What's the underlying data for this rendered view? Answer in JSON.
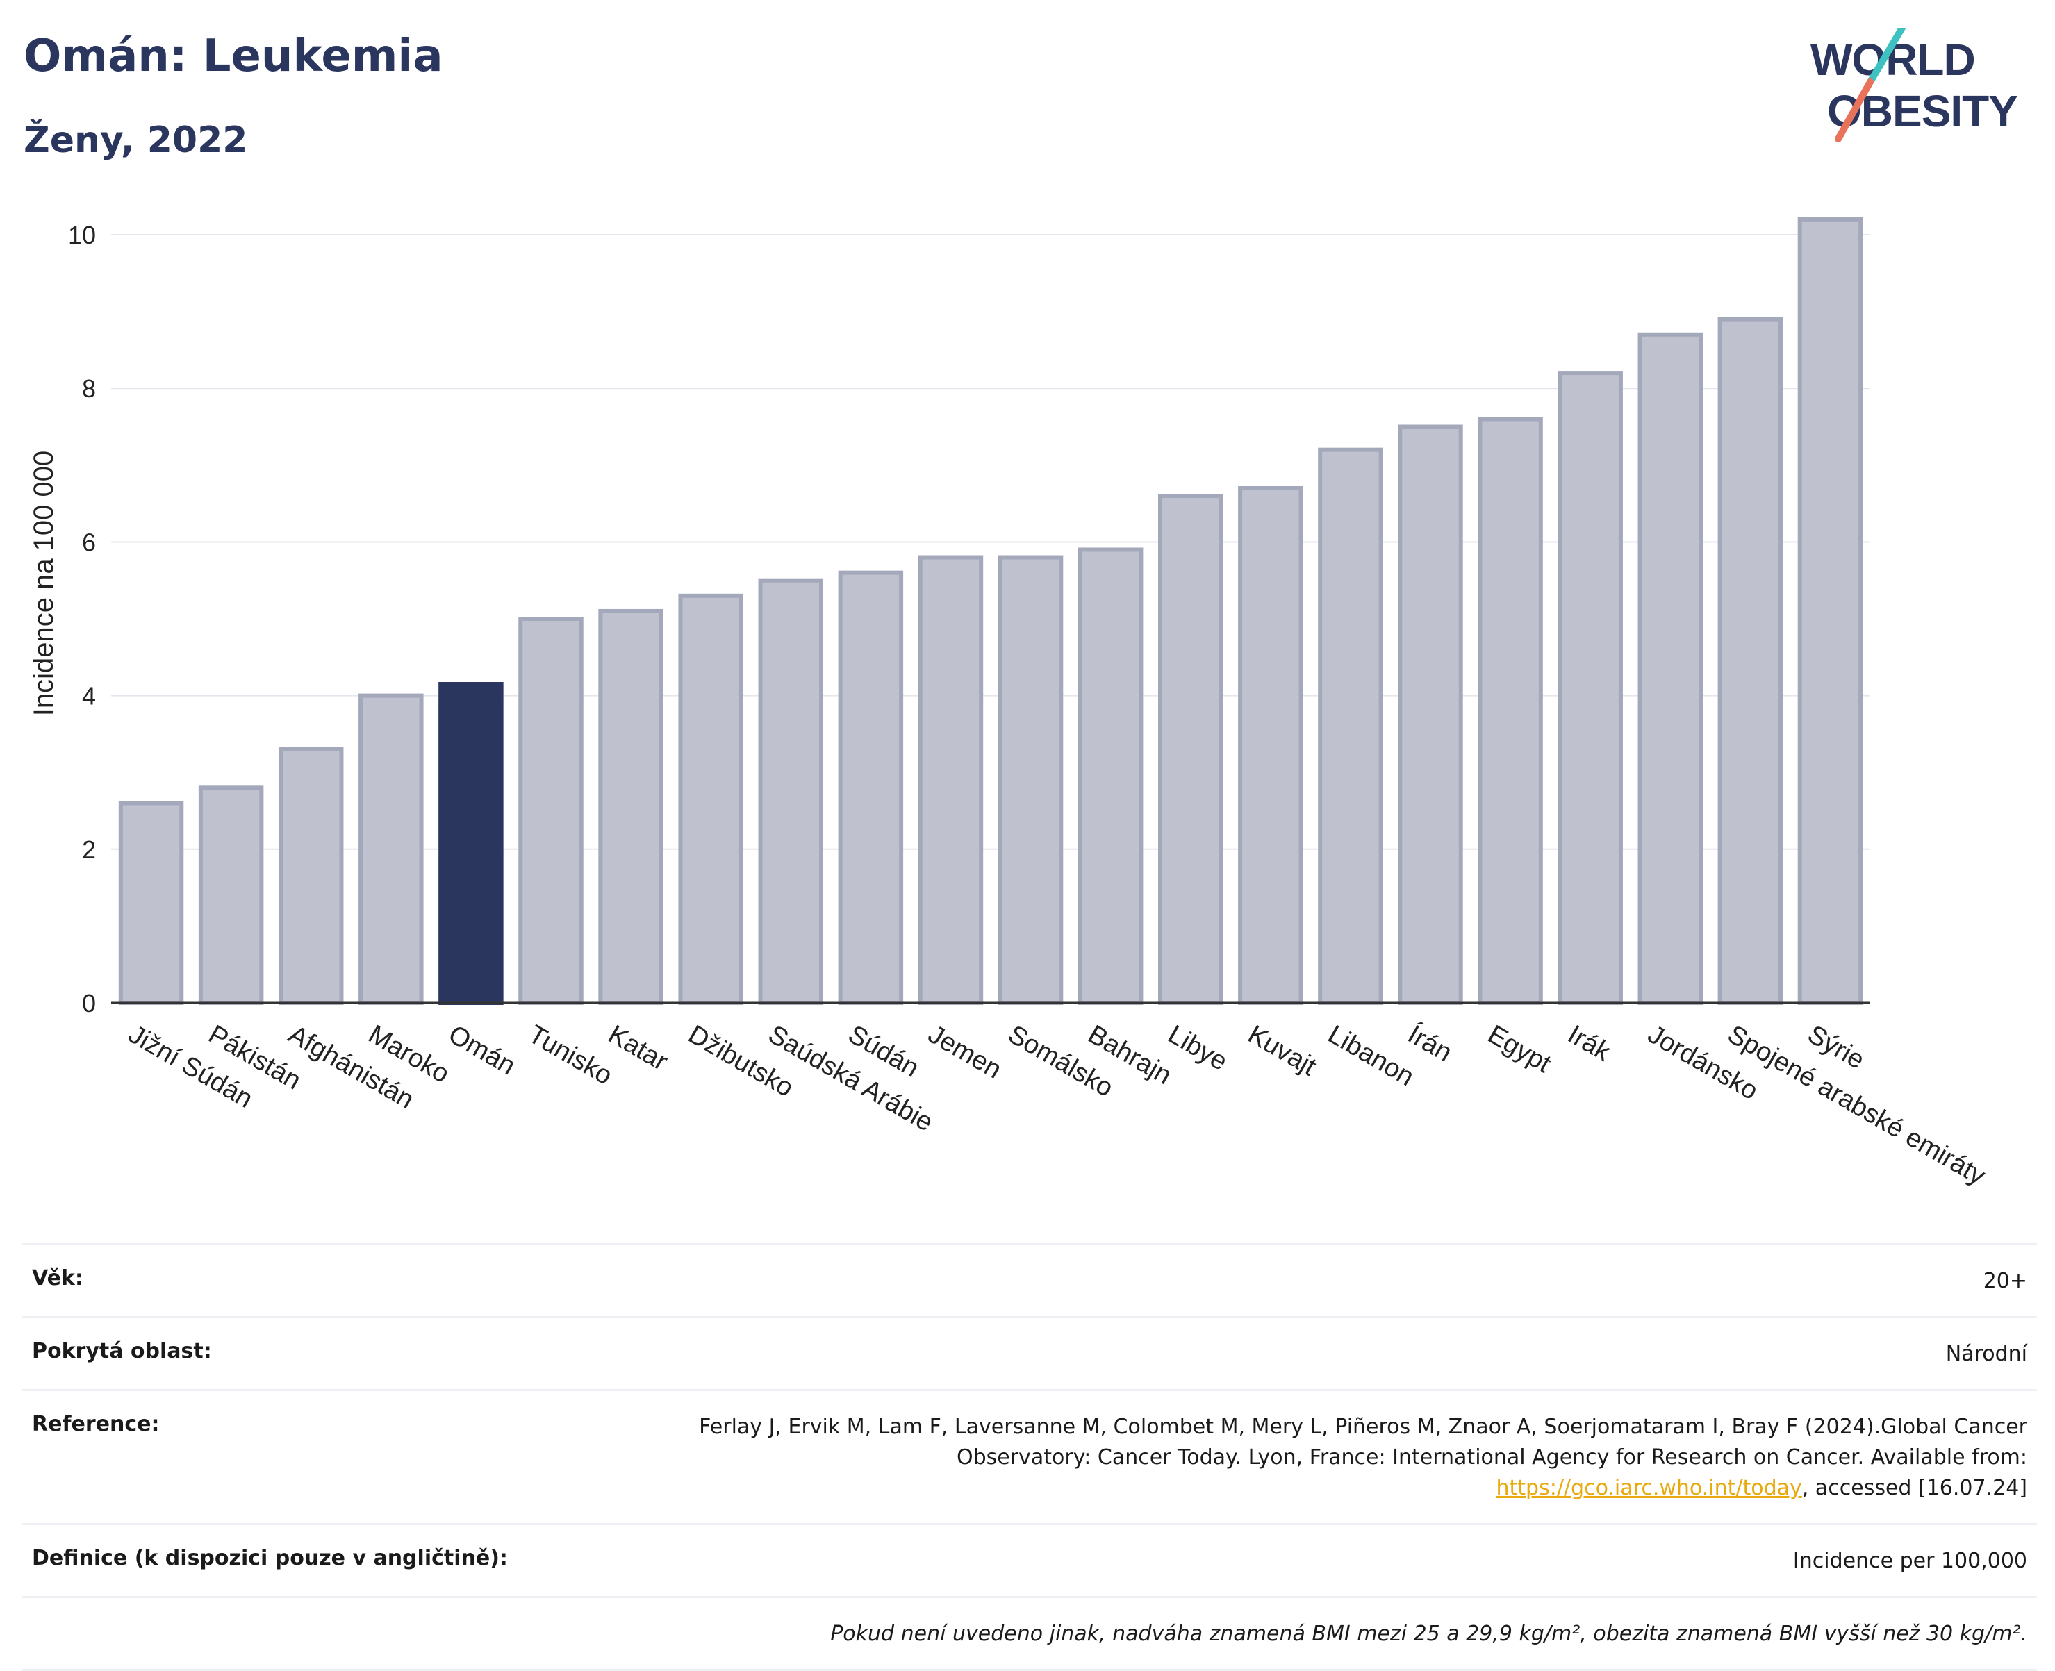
{
  "header": {
    "title": "Omán: Leukemia",
    "subtitle": "Ženy, 2022"
  },
  "logo": {
    "line1": "WORLD",
    "line2": "OBESITY",
    "icon": "world-obesity-logo"
  },
  "colors": {
    "bar_default": "#bfc2ce",
    "bar_default_border": "#a3a8bb",
    "bar_highlight": "#2b365f",
    "title": "#2b365f",
    "link": "#e8a90c",
    "logo_teal": "#3ec1c1",
    "logo_coral": "#e8735a"
  },
  "chart_data": {
    "type": "bar",
    "ylabel": "Incidence na 100 000",
    "ylim": [
      0,
      10.4
    ],
    "yticks": [
      0,
      2,
      4,
      6,
      8,
      10
    ],
    "grid": true,
    "highlight": "Omán",
    "categories": [
      "Jižní Súdán",
      "Pákistán",
      "Afghánistán",
      "Maroko",
      "Omán",
      "Tunisko",
      "Katar",
      "Džibutsko",
      "Saúdská Arábie",
      "Súdán",
      "Jemen",
      "Somálsko",
      "Bahrajn",
      "Libye",
      "Kuvajt",
      "Libanon",
      "Írán",
      "Egypt",
      "Irák",
      "Jordánsko",
      "Spojené arabské emiráty",
      "Sýrie"
    ],
    "values": [
      2.6,
      2.8,
      3.3,
      4.0,
      4.15,
      5.0,
      5.1,
      5.3,
      5.5,
      5.6,
      5.8,
      5.8,
      5.9,
      6.6,
      6.7,
      7.2,
      7.5,
      7.6,
      8.2,
      8.7,
      8.9,
      10.2
    ]
  },
  "meta": {
    "age_label": "Věk:",
    "age_value": "20+",
    "coverage_label": "Pokrytá oblast:",
    "coverage_value": "Národní",
    "reference_label": "Reference:",
    "reference_text_1": "Ferlay J, Ervik M, Lam F, Laversanne M, Colombet M, Mery L, Piñeros M, Znaor A, Soerjomataram I, Bray F (2024).Global Cancer Observatory: Cancer Today. Lyon, France: International Agency for Research on Cancer. Available from: ",
    "reference_link": "https://gco.iarc.who.int/today",
    "reference_text_2": ", accessed [16.07.24]",
    "definition_label": "Definice (k dispozici pouze v angličtině):",
    "definition_value": "Incidence per 100,000",
    "note": "Pokud není uvedeno jinak, nadváha znamená BMI mezi 25 a 29,9 kg/m², obezita znamená BMI vyšší než 30 kg/m²."
  }
}
